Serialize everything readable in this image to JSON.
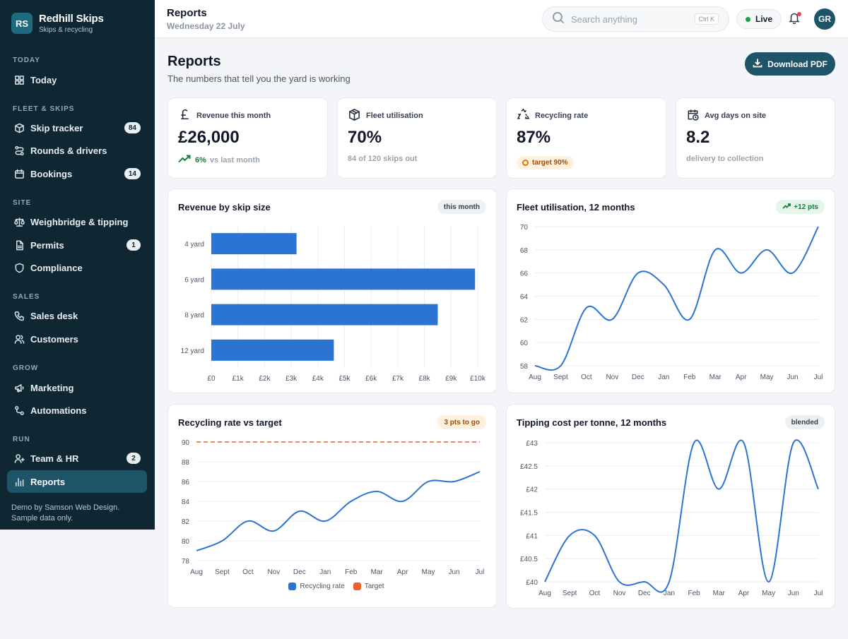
{
  "brand": {
    "mark": "RS",
    "name": "Redhill Skips",
    "subtitle": "Skips & recycling"
  },
  "sidebar": {
    "sections": {
      "today": "TODAY",
      "fleet": "FLEET & SKIPS",
      "site": "SITE",
      "sales": "SALES",
      "grow": "GROW",
      "run": "RUN"
    },
    "items": [
      {
        "label": "Today",
        "icon": "grid-icon"
      },
      {
        "label": "Skip tracker",
        "icon": "box-icon",
        "badge": "84"
      },
      {
        "label": "Rounds & drivers",
        "icon": "route-icon"
      },
      {
        "label": "Bookings",
        "icon": "calendar-icon",
        "badge": "14"
      },
      {
        "label": "Weighbridge & tipping",
        "icon": "scale-icon"
      },
      {
        "label": "Permits",
        "icon": "file-icon",
        "badge": "1"
      },
      {
        "label": "Compliance",
        "icon": "shield-icon"
      },
      {
        "label": "Sales desk",
        "icon": "phone-icon"
      },
      {
        "label": "Customers",
        "icon": "users-icon"
      },
      {
        "label": "Marketing",
        "icon": "megaphone-icon"
      },
      {
        "label": "Automations",
        "icon": "workflow-icon"
      },
      {
        "label": "Team & HR",
        "icon": "team-icon",
        "badge": "2"
      },
      {
        "label": "Reports",
        "icon": "bar-chart-icon",
        "active": true
      }
    ],
    "footer_line1": "Demo by Samson Web Design.",
    "footer_line2": "Sample data only."
  },
  "topbar": {
    "title": "Reports",
    "date": "Wednesday 22 July",
    "search_placeholder": "Search anything",
    "search_shortcut": "Ctrl K",
    "live_label": "Live",
    "avatar_initials": "GR"
  },
  "header": {
    "title": "Reports",
    "subtitle": "The numbers that tell you the yard is working",
    "download_label": "Download PDF"
  },
  "kpis": [
    {
      "label": "Revenue this month",
      "value": "£26,000",
      "trend": "6%",
      "note": "vs last month",
      "icon": "pound-icon"
    },
    {
      "label": "Fleet utilisation",
      "value": "70%",
      "note": "84 of 120 skips out",
      "icon": "cube-icon"
    },
    {
      "label": "Recycling rate",
      "value": "87%",
      "pill": "target 90%",
      "icon": "recycle-icon"
    },
    {
      "label": "Avg days on site",
      "value": "8.2",
      "note": "delivery to collection",
      "icon": "calendar-clock-icon"
    }
  ],
  "charts": {
    "revenue": {
      "title": "Revenue by skip size",
      "chip": "this month"
    },
    "fleet": {
      "title": "Fleet utilisation, 12 months",
      "chip": "+12 pts"
    },
    "recycling": {
      "title": "Recycling rate vs target",
      "chip": "3 pts to go",
      "legend_actual": "Recycling rate",
      "legend_target": "Target"
    },
    "tipping": {
      "title": "Tipping cost per tonne, 12 months",
      "chip": "blended"
    }
  },
  "colors": {
    "sidebar": "#0f2733",
    "accent": "#1d5467",
    "bar": "#2b74d4",
    "target": "#f0602b"
  },
  "chart_data": [
    {
      "type": "bar",
      "orientation": "horizontal",
      "title": "Revenue by skip size",
      "categories": [
        "4 yard",
        "6 yard",
        "8 yard",
        "12 yard"
      ],
      "values": [
        3200,
        9900,
        8500,
        4600
      ],
      "xlim": [
        0,
        10000
      ],
      "xticks": [
        "£0",
        "£1k",
        "£2k",
        "£3k",
        "£4k",
        "£5k",
        "£6k",
        "£7k",
        "£8k",
        "£9k",
        "£10k"
      ]
    },
    {
      "type": "line",
      "title": "Fleet utilisation, 12 months",
      "x": [
        "Aug",
        "Sept",
        "Oct",
        "Nov",
        "Dec",
        "Jan",
        "Feb",
        "Mar",
        "Apr",
        "May",
        "Jun",
        "Jul"
      ],
      "values": [
        58,
        58,
        63,
        62,
        66,
        65,
        62,
        68,
        66,
        68,
        66,
        70
      ],
      "ylim": [
        58,
        70
      ],
      "yticks": [
        58,
        60,
        62,
        64,
        66,
        68,
        70
      ]
    },
    {
      "type": "line",
      "title": "Recycling rate vs target",
      "x": [
        "Aug",
        "Sept",
        "Oct",
        "Nov",
        "Dec",
        "Jan",
        "Feb",
        "Mar",
        "Apr",
        "May",
        "Jun",
        "Jul"
      ],
      "series": [
        {
          "name": "Recycling rate",
          "values": [
            79,
            80,
            82,
            81,
            83,
            82,
            84,
            85,
            84,
            86,
            86,
            87
          ]
        },
        {
          "name": "Target",
          "values": [
            90,
            90,
            90,
            90,
            90,
            90,
            90,
            90,
            90,
            90,
            90,
            90
          ]
        }
      ],
      "ylim": [
        78,
        90
      ],
      "yticks": [
        78,
        80,
        82,
        84,
        86,
        88,
        90
      ]
    },
    {
      "type": "line",
      "title": "Tipping cost per tonne, 12 months",
      "x": [
        "Aug",
        "Sept",
        "Oct",
        "Nov",
        "Dec",
        "Jan",
        "Feb",
        "Mar",
        "Apr",
        "May",
        "Jun",
        "Jul"
      ],
      "values": [
        40,
        41,
        41,
        40,
        40,
        40,
        43,
        42,
        43,
        40,
        43,
        42
      ],
      "ylim": [
        40,
        43
      ],
      "yticks": [
        "£40",
        "£40.5",
        "£41",
        "£41.5",
        "£42",
        "£42.5",
        "£43"
      ]
    }
  ]
}
